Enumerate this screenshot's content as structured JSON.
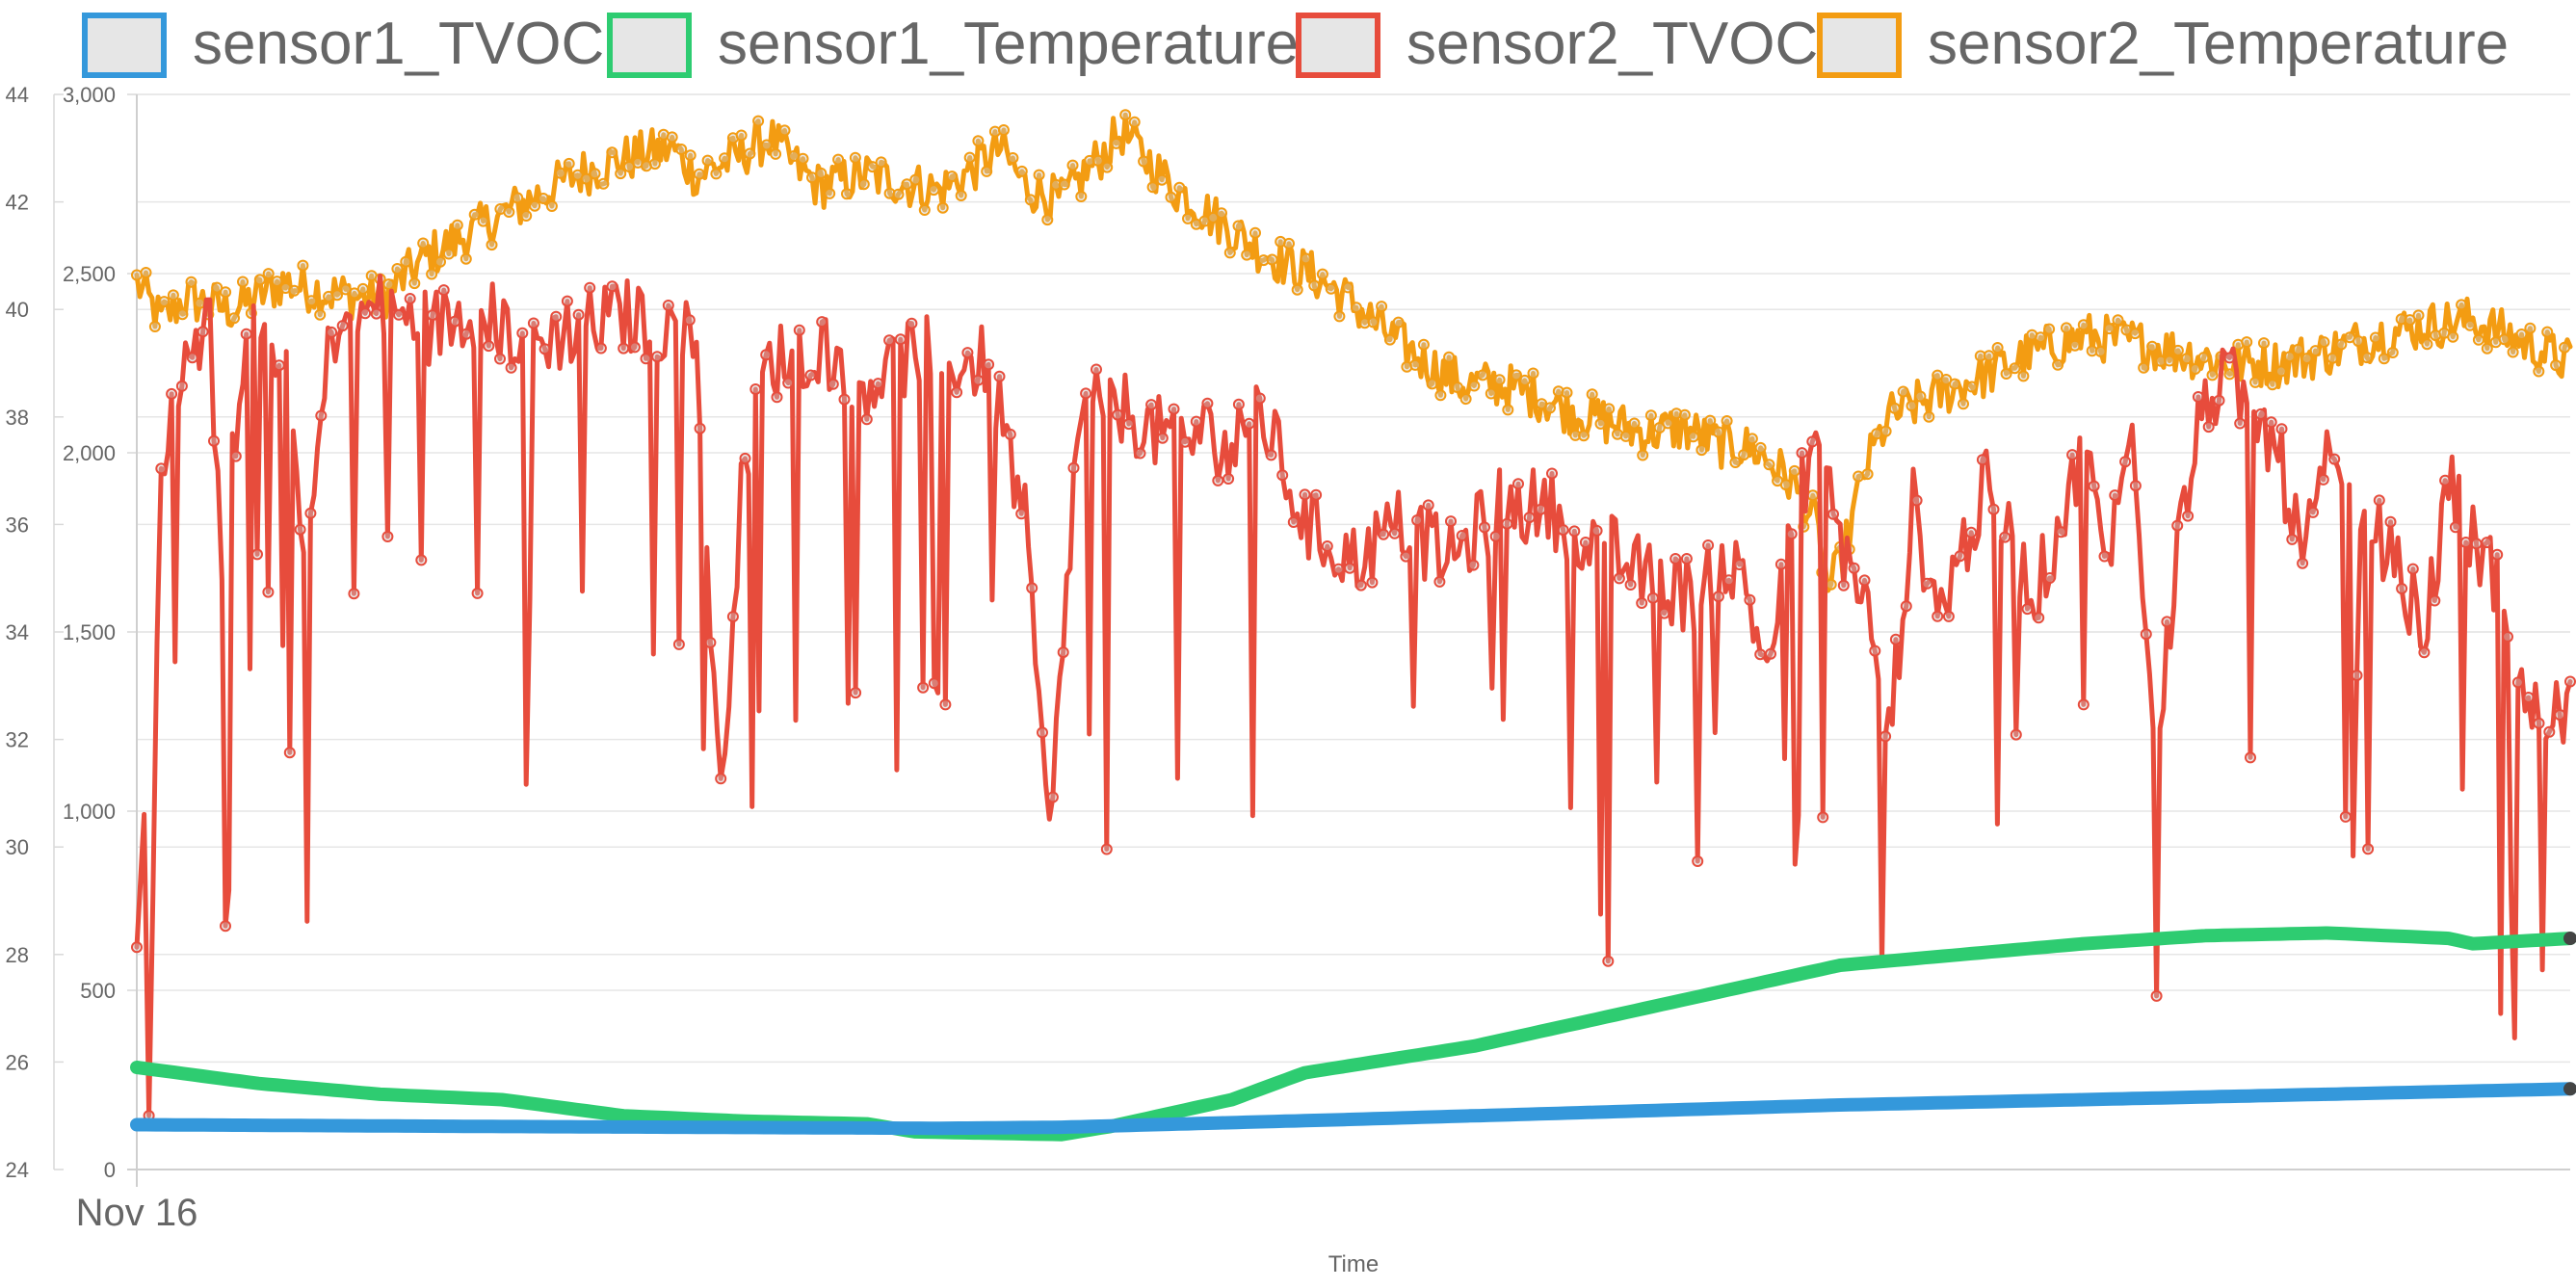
{
  "chart_data": {
    "type": "line",
    "title": "",
    "xlabel": "Time",
    "x_ticks": [
      "Nov 16"
    ],
    "legend_position": "top",
    "grid": true,
    "y_left": {
      "ticks": [
        "0",
        "500",
        "1,000",
        "1,500",
        "2,000",
        "2,500",
        "3,000"
      ],
      "range": [
        0,
        3000
      ]
    },
    "y_right": {
      "ticks": [
        "24",
        "26",
        "28",
        "30",
        "32",
        "34",
        "36",
        "38",
        "40",
        "42",
        "44"
      ],
      "range": [
        24,
        44
      ]
    },
    "x_range": [
      0,
      1000
    ],
    "series": [
      {
        "name": "sensor1_TVOC",
        "axis": "left",
        "color": "#3498db",
        "style": "thick",
        "points": [
          [
            0,
            125
          ],
          [
            150,
            120
          ],
          [
            330,
            115
          ],
          [
            380,
            118
          ],
          [
            500,
            140
          ],
          [
            700,
            180
          ],
          [
            900,
            210
          ],
          [
            1000,
            225
          ]
        ]
      },
      {
        "name": "sensor1_Temperature",
        "axis": "right",
        "color": "#2ecc71",
        "style": "thick",
        "points": [
          [
            0,
            25.9
          ],
          [
            50,
            25.6
          ],
          [
            100,
            25.4
          ],
          [
            150,
            25.3
          ],
          [
            200,
            25.0
          ],
          [
            250,
            24.9
          ],
          [
            300,
            24.85
          ],
          [
            320,
            24.7
          ],
          [
            380,
            24.65
          ],
          [
            400,
            24.8
          ],
          [
            450,
            25.3
          ],
          [
            480,
            25.8
          ],
          [
            550,
            26.3
          ],
          [
            600,
            26.8
          ],
          [
            650,
            27.3
          ],
          [
            700,
            27.8
          ],
          [
            750,
            28.0
          ],
          [
            800,
            28.2
          ],
          [
            850,
            28.35
          ],
          [
            900,
            28.4
          ],
          [
            950,
            28.3
          ],
          [
            960,
            28.2
          ],
          [
            1000,
            28.3
          ]
        ]
      },
      {
        "name": "sensor2_TVOC",
        "axis": "left",
        "color": "#e74c3c",
        "style": "noisy",
        "points": [
          [
            0,
            680
          ],
          [
            3,
            950
          ],
          [
            5,
            130
          ],
          [
            10,
            2000
          ],
          [
            20,
            2300
          ],
          [
            30,
            2350
          ],
          [
            35,
            1700
          ],
          [
            45,
            2380
          ],
          [
            60,
            2300
          ],
          [
            70,
            1700
          ],
          [
            80,
            2350
          ],
          [
            100,
            2400
          ],
          [
            120,
            2350
          ],
          [
            140,
            2400
          ],
          [
            160,
            2300
          ],
          [
            180,
            2350
          ],
          [
            200,
            2380
          ],
          [
            220,
            2350
          ],
          [
            230,
            2300
          ],
          [
            240,
            1000
          ],
          [
            245,
            1600
          ],
          [
            250,
            2000
          ],
          [
            260,
            2250
          ],
          [
            280,
            2300
          ],
          [
            300,
            2200
          ],
          [
            320,
            2280
          ],
          [
            340,
            2250
          ],
          [
            350,
            2250
          ],
          [
            365,
            1800
          ],
          [
            375,
            900
          ],
          [
            385,
            1900
          ],
          [
            390,
            2200
          ],
          [
            400,
            2150
          ],
          [
            420,
            2050
          ],
          [
            440,
            2050
          ],
          [
            450,
            2000
          ],
          [
            460,
            2150
          ],
          [
            480,
            1800
          ],
          [
            500,
            1700
          ],
          [
            520,
            1800
          ],
          [
            540,
            1700
          ],
          [
            560,
            1850
          ],
          [
            580,
            1850
          ],
          [
            600,
            1750
          ],
          [
            620,
            1650
          ],
          [
            640,
            1600
          ],
          [
            650,
            1700
          ],
          [
            660,
            1650
          ],
          [
            670,
            1400
          ],
          [
            680,
            1800
          ],
          [
            690,
            2050
          ],
          [
            700,
            1750
          ],
          [
            710,
            1600
          ],
          [
            720,
            1200
          ],
          [
            730,
            1850
          ],
          [
            740,
            1550
          ],
          [
            760,
            1900
          ],
          [
            780,
            1600
          ],
          [
            800,
            2000
          ],
          [
            810,
            1700
          ],
          [
            820,
            2050
          ],
          [
            830,
            1200
          ],
          [
            840,
            1800
          ],
          [
            850,
            2150
          ],
          [
            860,
            2200
          ],
          [
            870,
            2100
          ],
          [
            880,
            2000
          ],
          [
            890,
            1700
          ],
          [
            900,
            1950
          ],
          [
            920,
            1800
          ],
          [
            940,
            1500
          ],
          [
            950,
            1900
          ],
          [
            960,
            1750
          ],
          [
            970,
            1650
          ],
          [
            980,
            1300
          ],
          [
            990,
            1250
          ],
          [
            1000,
            1300
          ]
        ]
      },
      {
        "name": "sensor2_Temperature",
        "axis": "right",
        "color": "#f39c12",
        "style": "noisy",
        "points": [
          [
            0,
            40.5
          ],
          [
            10,
            39.8
          ],
          [
            20,
            40.2
          ],
          [
            40,
            40.0
          ],
          [
            60,
            40.5
          ],
          [
            80,
            40.3
          ],
          [
            100,
            40.2
          ],
          [
            120,
            41.0
          ],
          [
            140,
            41.5
          ],
          [
            160,
            42.0
          ],
          [
            180,
            42.5
          ],
          [
            200,
            42.8
          ],
          [
            220,
            43.0
          ],
          [
            230,
            42.5
          ],
          [
            245,
            42.8
          ],
          [
            260,
            43.2
          ],
          [
            270,
            42.7
          ],
          [
            280,
            42.3
          ],
          [
            300,
            42.5
          ],
          [
            320,
            42.3
          ],
          [
            330,
            42.2
          ],
          [
            340,
            42.5
          ],
          [
            355,
            43.0
          ],
          [
            365,
            42.3
          ],
          [
            380,
            42.0
          ],
          [
            395,
            42.8
          ],
          [
            405,
            43.3
          ],
          [
            415,
            42.8
          ],
          [
            425,
            42.3
          ],
          [
            440,
            41.8
          ],
          [
            455,
            41.3
          ],
          [
            470,
            40.9
          ],
          [
            485,
            40.6
          ],
          [
            500,
            40.1
          ],
          [
            515,
            39.5
          ],
          [
            530,
            39.0
          ],
          [
            545,
            38.6
          ],
          [
            560,
            38.6
          ],
          [
            575,
            38.4
          ],
          [
            590,
            38.1
          ],
          [
            605,
            37.9
          ],
          [
            620,
            37.7
          ],
          [
            635,
            37.8
          ],
          [
            650,
            37.5
          ],
          [
            665,
            37.4
          ],
          [
            680,
            36.8
          ],
          [
            690,
            36.0
          ],
          [
            695,
            34.8
          ],
          [
            700,
            35.2
          ],
          [
            710,
            37.0
          ],
          [
            720,
            38.0
          ],
          [
            740,
            38.4
          ],
          [
            760,
            38.8
          ],
          [
            780,
            39.2
          ],
          [
            800,
            39.5
          ],
          [
            820,
            39.4
          ],
          [
            840,
            39.2
          ],
          [
            860,
            39.0
          ],
          [
            880,
            39.0
          ],
          [
            900,
            39.2
          ],
          [
            920,
            39.5
          ],
          [
            940,
            39.7
          ],
          [
            960,
            39.8
          ],
          [
            980,
            39.4
          ],
          [
            1000,
            39.0
          ]
        ]
      }
    ]
  }
}
